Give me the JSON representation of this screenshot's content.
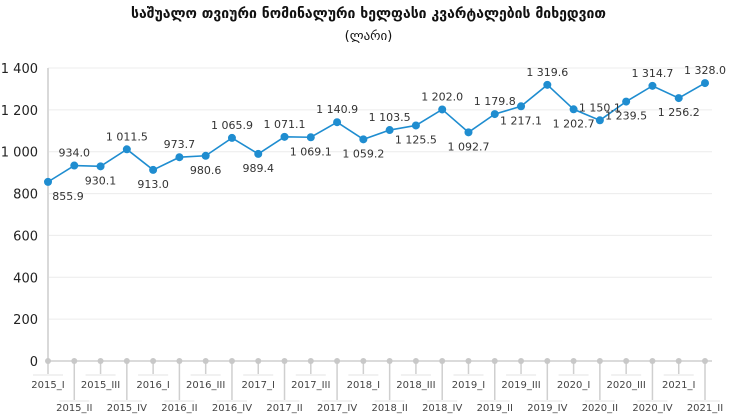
{
  "chart_data": {
    "type": "line",
    "title": "საშუალო თვიური ნომინალური ხელფასი კვარტალების მიხედვით",
    "subtitle": "(ლარი)",
    "xlabel": "",
    "ylabel": "",
    "ylim": [
      0,
      1400
    ],
    "yticks": [
      0,
      200,
      400,
      600,
      800,
      1000,
      1200,
      1400
    ],
    "ytick_labels": [
      "0",
      "200",
      "400",
      "600",
      "800",
      "1 000",
      "1 200",
      "1 400"
    ],
    "grid": true,
    "legend": "none",
    "line_color": "#1f8dd0",
    "categories": [
      "2015_I",
      "2015_II",
      "2015_III",
      "2015_IV",
      "2016_I",
      "2016_II",
      "2016_III",
      "2016_IV",
      "2017_I",
      "2017_II",
      "2017_III",
      "2017_IV",
      "2018_I",
      "2018_II",
      "2018_III",
      "2018_IV",
      "2019_I",
      "2019_II",
      "2019_III",
      "2019_IV",
      "2020_I",
      "2020_II",
      "2020_III",
      "2020_IV",
      "2021_I",
      "2021_II"
    ],
    "values": [
      855.9,
      934.0,
      930.1,
      1011.5,
      913.0,
      973.7,
      980.6,
      1065.9,
      989.4,
      1071.1,
      1069.1,
      1140.9,
      1059.2,
      1103.5,
      1125.5,
      1202.0,
      1092.7,
      1179.8,
      1217.1,
      1319.6,
      1202.7,
      1150.1,
      1239.5,
      1314.7,
      1256.2,
      1328.0
    ],
    "value_labels": [
      "855.9",
      "934.0",
      "930.1",
      "1 011.5",
      "913.0",
      "973.7",
      "980.6",
      "1 065.9",
      "989.4",
      "1 071.1",
      "1 069.1",
      "1 140.9",
      "1 059.2",
      "1 103.5",
      "1 125.5",
      "1 202.0",
      "1 092.7",
      "1 179.8",
      "1 217.1",
      "1 319.6",
      "1 202.7",
      "1 150.1",
      "1 239.5",
      "1 314.7",
      "1 256.2",
      "1 328.0"
    ]
  }
}
